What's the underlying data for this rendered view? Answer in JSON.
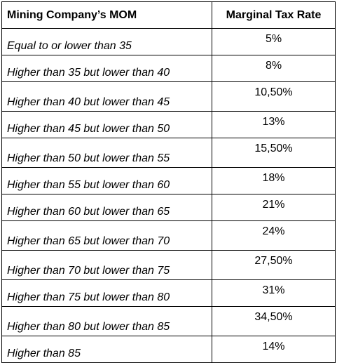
{
  "table": {
    "headers": {
      "mom": "Mining Company’s MOM",
      "rate": "Marginal Tax Rate"
    },
    "rows": [
      {
        "mom": "Equal to or lower than 35",
        "rate": "5%"
      },
      {
        "mom": "Higher than 35 but lower than 40",
        "rate": "8%"
      },
      {
        "mom": "Higher than 40 but lower than 45",
        "rate": "10,50%"
      },
      {
        "mom": "Higher than 45 but lower than 50",
        "rate": "13%"
      },
      {
        "mom": "Higher than 50 but lower than 55",
        "rate": "15,50%"
      },
      {
        "mom": "Higher than 55 but lower than 60",
        "rate": "18%"
      },
      {
        "mom": "Higher than 60 but lower than 65",
        "rate": "21%"
      },
      {
        "mom": "Higher than 65 but lower than 70",
        "rate": "24%"
      },
      {
        "mom": "Higher than 70 but lower than 75",
        "rate": "27,50%"
      },
      {
        "mom": "Higher than 75 but lower than 80",
        "rate": "31%"
      },
      {
        "mom": "Higher than 80 but lower than 85",
        "rate": "34,50%"
      },
      {
        "mom": "Higher than 85",
        "rate": "14%"
      }
    ]
  }
}
